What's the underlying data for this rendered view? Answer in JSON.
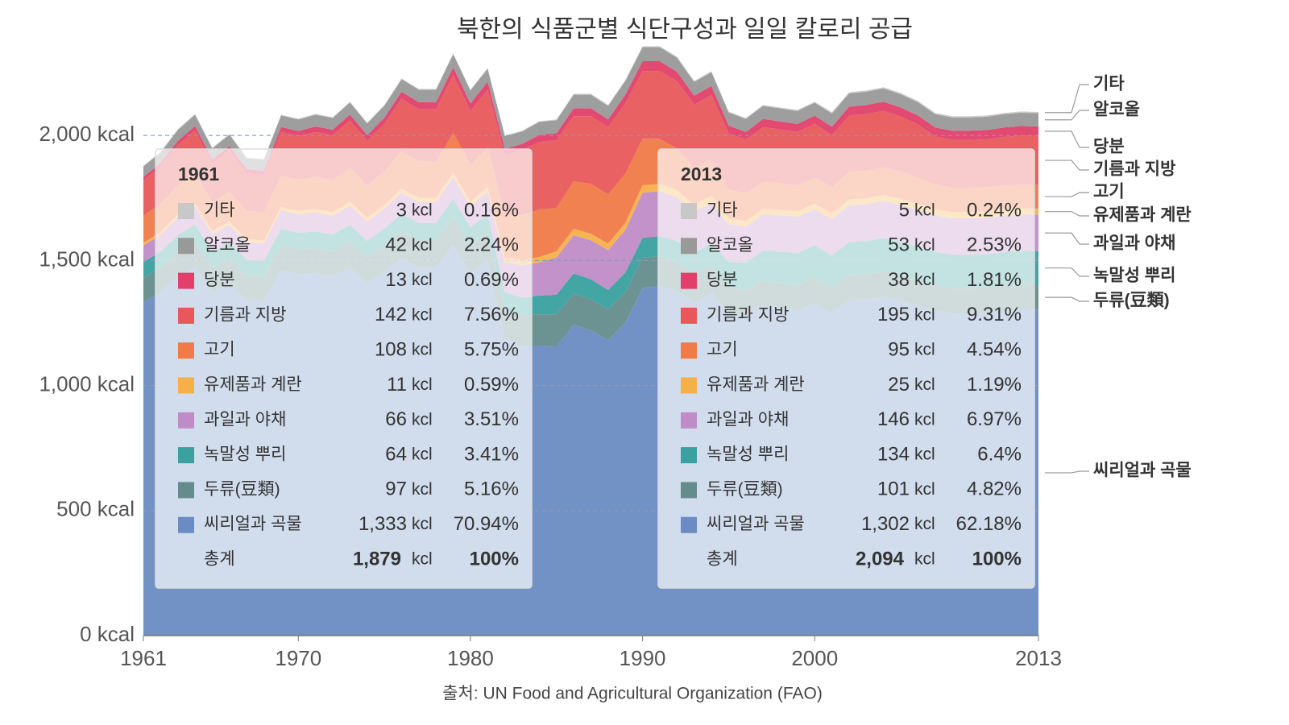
{
  "chart_data": {
    "type": "area",
    "title": "북한의 식품군별 식단구성과 일일 칼로리 공급",
    "source": "출처: UN Food and Agricultural Organization (FAO)",
    "x": [
      1961,
      1962,
      1963,
      1964,
      1965,
      1966,
      1967,
      1968,
      1969,
      1970,
      1971,
      1972,
      1973,
      1974,
      1975,
      1976,
      1977,
      1978,
      1979,
      1980,
      1981,
      1982,
      1983,
      1984,
      1985,
      1986,
      1987,
      1988,
      1989,
      1990,
      1991,
      1992,
      1993,
      1994,
      1995,
      1996,
      1997,
      1998,
      1999,
      2000,
      2001,
      2002,
      2003,
      2004,
      2005,
      2006,
      2007,
      2008,
      2009,
      2010,
      2011,
      2012,
      2013
    ],
    "xlim": [
      1961,
      2013
    ],
    "xticks": [
      1961,
      1970,
      1980,
      1990,
      2000,
      2013
    ],
    "ylim": [
      0,
      2400
    ],
    "yticks": [
      {
        "value": 0,
        "label": "0 kcal"
      },
      {
        "value": 500,
        "label": "500 kcal"
      },
      {
        "value": 1000,
        "label": "1,000 kcal"
      },
      {
        "value": 1500,
        "label": "1,500 kcal"
      },
      {
        "value": 2000,
        "label": "2,000 kcal"
      }
    ],
    "grid": true,
    "stacked": true,
    "series": [
      {
        "name": "기타",
        "color": "#c8c8c8",
        "values": [
          3,
          3,
          3,
          3,
          3,
          3,
          3,
          3,
          3,
          3,
          3,
          3,
          3,
          3,
          3,
          3,
          3,
          3,
          3,
          3,
          3,
          3,
          3,
          3,
          3,
          4,
          4,
          4,
          4,
          4,
          4,
          4,
          4,
          4,
          4,
          4,
          4,
          4,
          4,
          4,
          5,
          5,
          5,
          5,
          5,
          5,
          5,
          5,
          5,
          5,
          5,
          5,
          5
        ]
      },
      {
        "name": "알코올",
        "color": "#999999",
        "values": [
          42,
          42,
          44,
          45,
          44,
          45,
          44,
          44,
          46,
          46,
          47,
          47,
          48,
          47,
          48,
          50,
          50,
          50,
          52,
          52,
          52,
          50,
          50,
          52,
          52,
          54,
          54,
          54,
          55,
          56,
          56,
          56,
          55,
          55,
          52,
          52,
          52,
          52,
          52,
          52,
          53,
          53,
          53,
          53,
          53,
          53,
          53,
          53,
          53,
          53,
          53,
          53,
          53
        ]
      },
      {
        "name": "당분",
        "color": "#e0406a",
        "values": [
          13,
          14,
          16,
          18,
          16,
          18,
          17,
          17,
          20,
          20,
          22,
          22,
          24,
          22,
          24,
          28,
          28,
          28,
          32,
          30,
          32,
          25,
          25,
          28,
          28,
          32,
          32,
          30,
          35,
          40,
          40,
          38,
          36,
          36,
          32,
          30,
          32,
          32,
          32,
          32,
          34,
          36,
          36,
          37,
          36,
          36,
          36,
          37,
          37,
          37,
          38,
          38,
          38
        ]
      },
      {
        "name": "기름과 지방",
        "color": "#e8585a",
        "values": [
          142,
          150,
          160,
          170,
          155,
          165,
          150,
          150,
          175,
          175,
          180,
          180,
          190,
          180,
          190,
          210,
          210,
          210,
          230,
          215,
          230,
          240,
          260,
          270,
          270,
          260,
          270,
          270,
          280,
          270,
          270,
          270,
          250,
          260,
          225,
          215,
          220,
          215,
          215,
          215,
          208,
          225,
          227,
          226,
          221,
          213,
          191,
          191,
          191,
          192,
          194,
          196,
          195
        ]
      },
      {
        "name": "고기",
        "color": "#f07a48",
        "values": [
          108,
          112,
          118,
          122,
          115,
          120,
          112,
          112,
          125,
          125,
          128,
          128,
          135,
          128,
          135,
          150,
          145,
          145,
          160,
          148,
          160,
          170,
          180,
          190,
          174,
          190,
          200,
          196,
          198,
          186,
          180,
          165,
          150,
          144,
          114,
          112,
          107,
          107,
          102,
          105,
          105,
          110,
          110,
          110,
          108,
          105,
          100,
          98,
          97,
          97,
          96,
          95,
          95
        ]
      },
      {
        "name": "유제품과 계란",
        "color": "#f5b04a",
        "values": [
          11,
          11,
          12,
          12,
          12,
          12,
          12,
          12,
          13,
          13,
          14,
          14,
          15,
          15,
          15,
          16,
          16,
          16,
          17,
          17,
          18,
          18,
          20,
          22,
          24,
          26,
          26,
          26,
          28,
          30,
          30,
          30,
          28,
          28,
          24,
          22,
          22,
          22,
          22,
          22,
          23,
          23,
          23,
          24,
          24,
          24,
          24,
          24,
          25,
          25,
          25,
          25,
          25
        ]
      },
      {
        "name": "과일과 야채",
        "color": "#c08cc8",
        "values": [
          66,
          68,
          70,
          72,
          70,
          72,
          70,
          70,
          74,
          74,
          76,
          76,
          78,
          78,
          80,
          84,
          84,
          84,
          88,
          86,
          90,
          120,
          130,
          132,
          150,
          153,
          156,
          160,
          170,
          180,
          180,
          174,
          165,
          160,
          150,
          145,
          145,
          145,
          145,
          145,
          145,
          148,
          148,
          148,
          148,
          147,
          146,
          146,
          146,
          146,
          146,
          146,
          146
        ]
      },
      {
        "name": "녹말성 뿌리",
        "color": "#3aa0a0",
        "values": [
          64,
          64,
          66,
          68,
          66,
          66,
          64,
          64,
          66,
          66,
          66,
          66,
          68,
          68,
          68,
          70,
          70,
          70,
          72,
          72,
          72,
          72,
          72,
          75,
          78,
          80,
          80,
          78,
          80,
          80,
          80,
          80,
          85,
          90,
          100,
          110,
          120,
          125,
          130,
          130,
          130,
          132,
          132,
          134,
          134,
          134,
          134,
          134,
          134,
          134,
          134,
          134,
          134
        ]
      },
      {
        "name": "두류(豆類)",
        "color": "#648c8c",
        "values": [
          97,
          98,
          100,
          102,
          98,
          100,
          97,
          97,
          100,
          100,
          100,
          100,
          104,
          102,
          104,
          110,
          108,
          108,
          112,
          110,
          115,
          110,
          120,
          125,
          129,
          125,
          125,
          122,
          120,
          120,
          120,
          118,
          115,
          110,
          105,
          100,
          100,
          100,
          100,
          100,
          100,
          101,
          101,
          101,
          101,
          101,
          101,
          101,
          101,
          101,
          101,
          101,
          101
        ]
      },
      {
        "name": "씨리얼과 곡물",
        "color": "#6a8cc2",
        "values": [
          1333,
          1373,
          1436,
          1474,
          1372,
          1405,
          1343,
          1337,
          1461,
          1445,
          1450,
          1437,
          1470,
          1408,
          1455,
          1507,
          1472,
          1472,
          1562,
          1450,
          1498,
          1192,
          1159,
          1160,
          1156,
          1243,
          1220,
          1182,
          1252,
          1391,
          1397,
          1380,
          1330,
          1370,
          1290,
          1280,
          1320,
          1310,
          1300,
          1330,
          1290,
          1340,
          1345,
          1355,
          1340,
          1320,
          1300,
          1288,
          1288,
          1290,
          1298,
          1303,
          1302
        ]
      }
    ]
  },
  "tables": [
    {
      "year": "1961",
      "unit": "kcl",
      "values": [
        "3",
        "42",
        "13",
        "142",
        "108",
        "11",
        "66",
        "64",
        "97",
        "1,333"
      ],
      "shares": [
        "0.16%",
        "2.24%",
        "0.69%",
        "7.56%",
        "5.75%",
        "0.59%",
        "3.51%",
        "3.41%",
        "5.16%",
        "70.94%"
      ],
      "total_label": "총계",
      "total": "1,879",
      "total_share": "100%"
    },
    {
      "year": "2013",
      "unit": "kcl",
      "values": [
        "5",
        "53",
        "38",
        "195",
        "95",
        "25",
        "146",
        "134",
        "101",
        "1,302"
      ],
      "shares": [
        "0.24%",
        "2.53%",
        "1.81%",
        "9.31%",
        "4.54%",
        "1.19%",
        "6.97%",
        "6.4%",
        "4.82%",
        "62.18%"
      ],
      "total_label": "총계",
      "total": "2,094",
      "total_share": "100%"
    }
  ]
}
